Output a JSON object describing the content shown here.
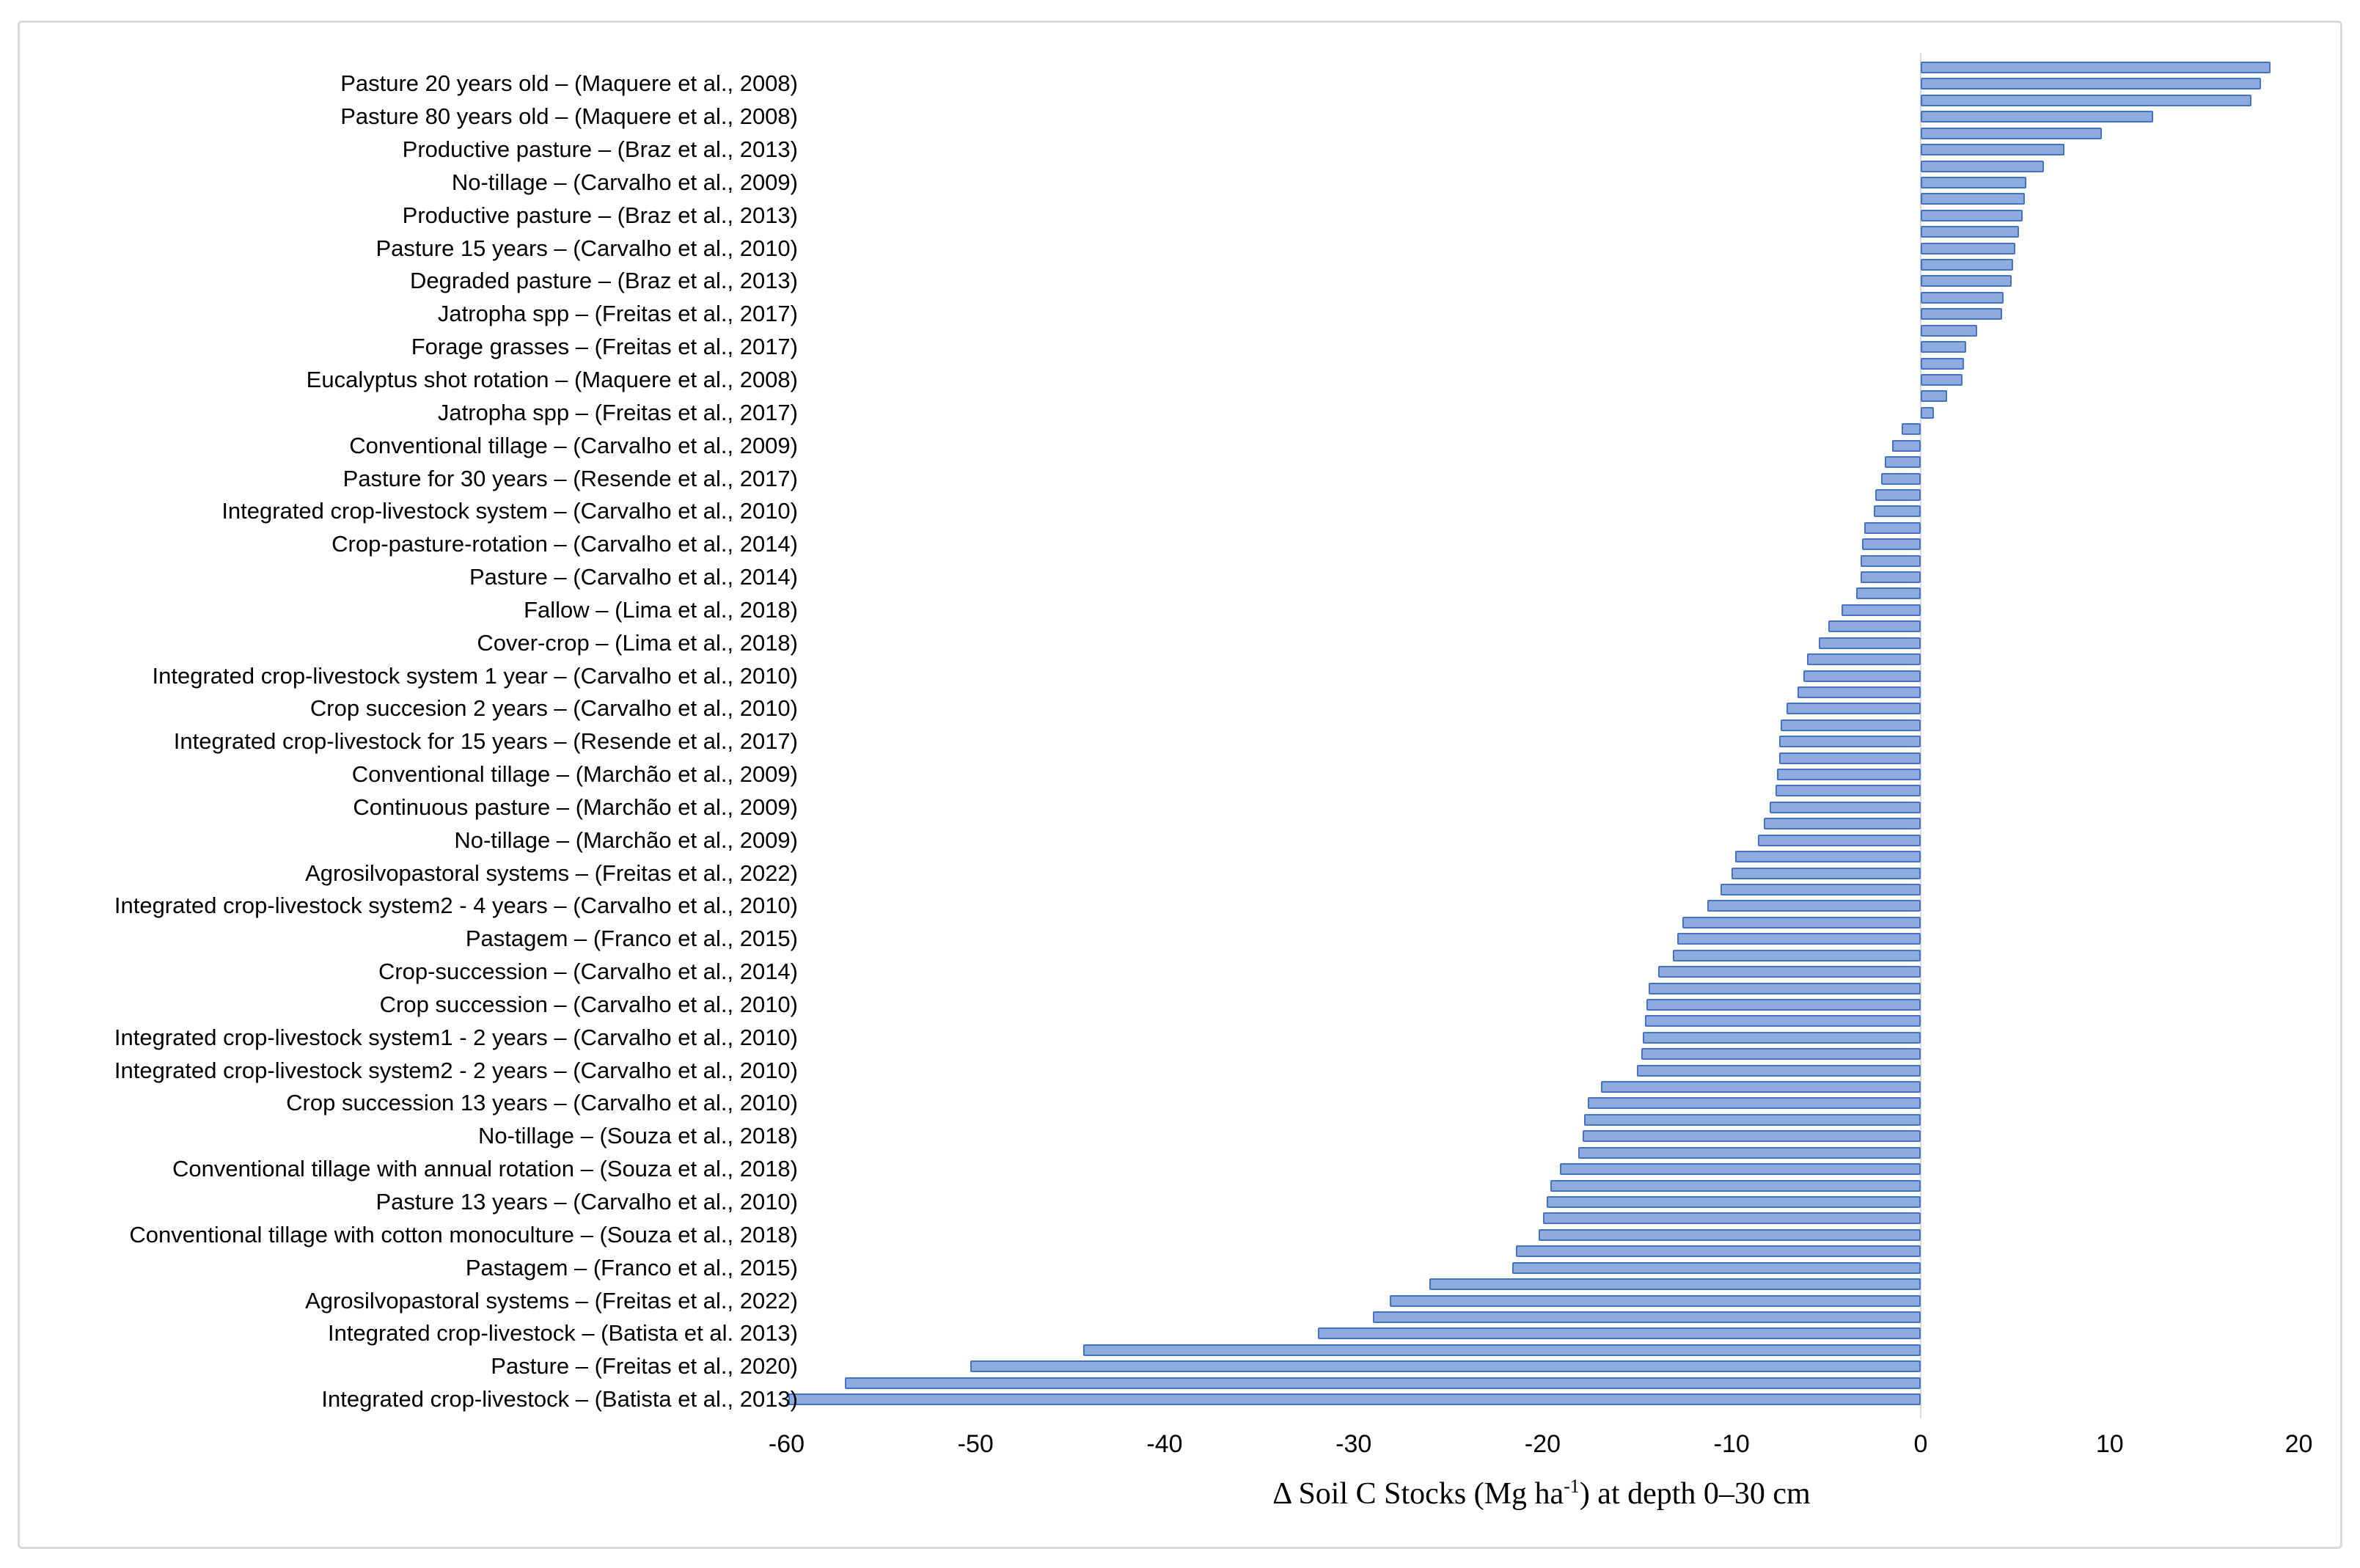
{
  "figure": {
    "background": "#ffffff",
    "frame_border_color": "#d9d9d9"
  },
  "chart_data": {
    "type": "bar",
    "orientation": "horizontal",
    "title": "",
    "xlabel": "Δ Soil C Stocks (Mg ha⁻¹) at depth 0–30 cm",
    "xlabel_parts": {
      "prefix": "Δ Soil C Stocks (Mg ha",
      "sup": "-1",
      "suffix": ") at depth 0–30 cm"
    },
    "ylabel": "",
    "xlim": [
      -60,
      20
    ],
    "xticks": [
      -60,
      -50,
      -40,
      -30,
      -20,
      -10,
      0,
      10,
      20
    ],
    "grid": false,
    "legend": false,
    "bar_fill": "#8FAADC",
    "bar_border": "#4472C4",
    "zero_line_color": "#d9d9d9",
    "layout_note": "82 sorted bars; category axis labels are shown only for every second bar",
    "bars": [
      {
        "label": "",
        "value": 18.5
      },
      {
        "label": "Pasture 20 years old – (Maquere et al., 2008)",
        "value": 18.0
      },
      {
        "label": "",
        "value": 17.5
      },
      {
        "label": "Pasture 80 years old – (Maquere et al., 2008)",
        "value": 12.3
      },
      {
        "label": "",
        "value": 9.6
      },
      {
        "label": "Productive pasture – (Braz et al., 2013)",
        "value": 7.6
      },
      {
        "label": "",
        "value": 6.5
      },
      {
        "label": "No-tillage – (Carvalho et al., 2009)",
        "value": 5.6
      },
      {
        "label": "",
        "value": 5.5
      },
      {
        "label": "Productive pasture – (Braz et al., 2013)",
        "value": 5.4
      },
      {
        "label": "",
        "value": 5.2
      },
      {
        "label": "Pasture 15 years – (Carvalho et al., 2010)",
        "value": 5.0
      },
      {
        "label": "",
        "value": 4.9
      },
      {
        "label": "Degraded pasture – (Braz et al., 2013)",
        "value": 4.8
      },
      {
        "label": "",
        "value": 4.4
      },
      {
        "label": "Jatropha spp – (Freitas et al., 2017)",
        "value": 4.3
      },
      {
        "label": "",
        "value": 3.0
      },
      {
        "label": "Forage grasses – (Freitas et al., 2017)",
        "value": 2.4
      },
      {
        "label": "",
        "value": 2.3
      },
      {
        "label": "Eucalyptus shot rotation – (Maquere et al., 2008)",
        "value": 2.2
      },
      {
        "label": "",
        "value": 1.4
      },
      {
        "label": "Jatropha spp – (Freitas et al., 2017)",
        "value": 0.7
      },
      {
        "label": "",
        "value": -1.0
      },
      {
        "label": "Conventional tillage – (Carvalho et al., 2009)",
        "value": -1.5
      },
      {
        "label": "",
        "value": -1.9
      },
      {
        "label": "Pasture for 30 years – (Resende et al., 2017)",
        "value": -2.1
      },
      {
        "label": "",
        "value": -2.4
      },
      {
        "label": "Integrated crop-livestock system – (Carvalho et al., 2010)",
        "value": -2.5
      },
      {
        "label": "",
        "value": -3.0
      },
      {
        "label": "Crop-pasture-rotation – (Carvalho et al., 2014)",
        "value": -3.1
      },
      {
        "label": "",
        "value": -3.2
      },
      {
        "label": "Pasture – (Carvalho et al., 2014)",
        "value": -3.2
      },
      {
        "label": "",
        "value": -3.4
      },
      {
        "label": "Fallow – (Lima et al., 2018)",
        "value": -4.2
      },
      {
        "label": "",
        "value": -4.9
      },
      {
        "label": "Cover-crop – (Lima et al., 2018)",
        "value": -5.4
      },
      {
        "label": "",
        "value": -6.0
      },
      {
        "label": "Integrated crop-livestock system 1 year – (Carvalho et al., 2010)",
        "value": -6.2
      },
      {
        "label": "",
        "value": -6.5
      },
      {
        "label": "Crop succesion 2 years – (Carvalho et al., 2010)",
        "value": -7.1
      },
      {
        "label": "",
        "value": -7.4
      },
      {
        "label": "Integrated crop-livestock for 15 years – (Resende et al., 2017)",
        "value": -7.5
      },
      {
        "label": "",
        "value": -7.5
      },
      {
        "label": "Conventional tillage – (Marchão et al., 2009)",
        "value": -7.6
      },
      {
        "label": "",
        "value": -7.7
      },
      {
        "label": "Continuous pasture – (Marchão et al., 2009)",
        "value": -8.0
      },
      {
        "label": "",
        "value": -8.3
      },
      {
        "label": "No-tillage – (Marchão et al., 2009)",
        "value": -8.6
      },
      {
        "label": "",
        "value": -9.8
      },
      {
        "label": "Agrosilvopastoral systems – (Freitas et al., 2022)",
        "value": -10.0
      },
      {
        "label": "",
        "value": -10.6
      },
      {
        "label": "Integrated crop-livestock system2 - 4 years – (Carvalho et al., 2010)",
        "value": -11.3
      },
      {
        "label": "",
        "value": -12.6
      },
      {
        "label": "Pastagem – (Franco et al., 2015)",
        "value": -12.9
      },
      {
        "label": "",
        "value": -13.1
      },
      {
        "label": "Crop-succession – (Carvalho et al., 2014)",
        "value": -13.9
      },
      {
        "label": "",
        "value": -14.4
      },
      {
        "label": "Crop succession – (Carvalho et al., 2010)",
        "value": -14.5
      },
      {
        "label": "",
        "value": -14.6
      },
      {
        "label": "Integrated crop-livestock system1 - 2 years – (Carvalho et al., 2010)",
        "value": -14.7
      },
      {
        "label": "",
        "value": -14.8
      },
      {
        "label": "Integrated crop-livestock system2 - 2 years – (Carvalho et al., 2010)",
        "value": -15.0
      },
      {
        "label": "",
        "value": -16.9
      },
      {
        "label": "Crop succession 13 years – (Carvalho et al., 2010)",
        "value": -17.6
      },
      {
        "label": "",
        "value": -17.8
      },
      {
        "label": "No-tillage – (Souza et al., 2018)",
        "value": -17.9
      },
      {
        "label": "",
        "value": -18.1
      },
      {
        "label": "Conventional tillage with annual rotation – (Souza et al., 2018)",
        "value": -19.1
      },
      {
        "label": "",
        "value": -19.6
      },
      {
        "label": "Pasture 13 years – (Carvalho et al., 2010)",
        "value": -19.8
      },
      {
        "label": "",
        "value": -20.0
      },
      {
        "label": "Conventional tillage with cotton monoculture – (Souza et al., 2018)",
        "value": -20.2
      },
      {
        "label": "",
        "value": -21.4
      },
      {
        "label": "Pastagem – (Franco et al., 2015)",
        "value": -21.6
      },
      {
        "label": "",
        "value": -26.0
      },
      {
        "label": "Agrosilvopastoral systems – (Freitas et al., 2022)",
        "value": -28.1
      },
      {
        "label": "",
        "value": -29.0
      },
      {
        "label": "Integrated crop-livestock – (Batista et al. 2013)",
        "value": -31.9
      },
      {
        "label": "",
        "value": -44.3
      },
      {
        "label": "Pasture – (Freitas et al., 2020)",
        "value": -50.3
      },
      {
        "label": "",
        "value": -56.9
      },
      {
        "label": "Integrated crop-livestock – (Batista et al., 2013)",
        "value": -59.9
      }
    ]
  }
}
